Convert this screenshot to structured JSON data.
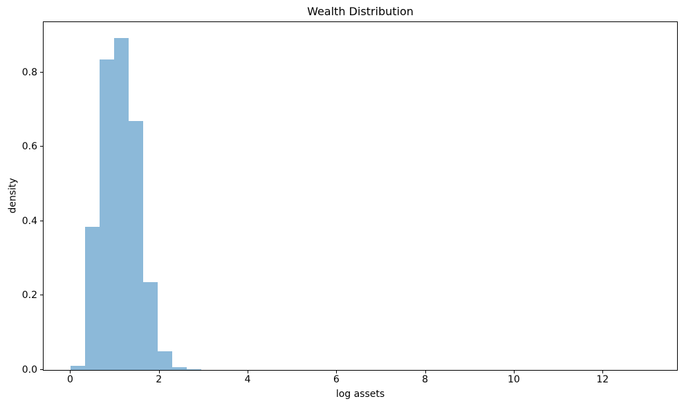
{
  "chart_data": {
    "type": "bar",
    "subtype": "histogram",
    "title": "Wealth Distribution",
    "xlabel": "log assets",
    "ylabel": "density",
    "bin_edges": [
      0.012,
      0.338,
      0.664,
      0.99,
      1.317,
      1.643,
      1.969,
      2.295,
      2.621,
      2.947
    ],
    "densities": [
      0.012,
      0.385,
      0.834,
      0.893,
      0.669,
      0.237,
      0.05,
      0.007,
      0.002
    ],
    "xlim": [
      -0.6,
      13.68
    ],
    "ylim": [
      0,
      0.935
    ],
    "xticks": [
      0,
      2,
      4,
      6,
      8,
      10,
      12
    ],
    "xtick_labels": [
      "0",
      "2",
      "4",
      "6",
      "8",
      "10",
      "12"
    ],
    "yticks": [
      0.0,
      0.2,
      0.4,
      0.6,
      0.8
    ],
    "ytick_labels": [
      "0.0",
      "0.2",
      "0.4",
      "0.6",
      "0.8"
    ],
    "bar_color": "#8cb9d9",
    "axis_color": "#000000",
    "text_color": "#000000",
    "background_color": "#ffffff",
    "grid": false,
    "legend": "none"
  }
}
